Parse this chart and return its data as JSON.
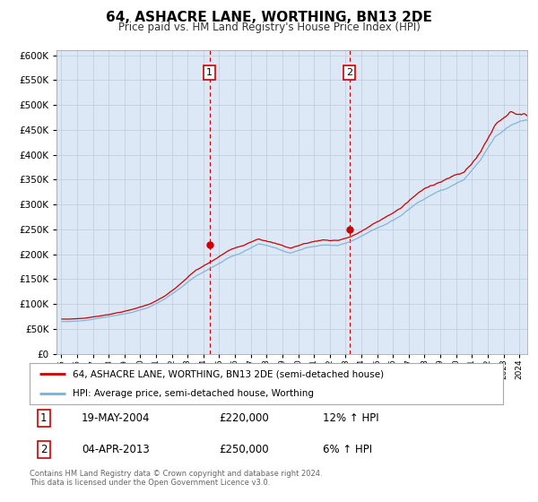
{
  "title": "64, ASHACRE LANE, WORTHING, BN13 2DE",
  "subtitle": "Price paid vs. HM Land Registry's House Price Index (HPI)",
  "legend_line1": "64, ASHACRE LANE, WORTHING, BN13 2DE (semi-detached house)",
  "legend_line2": "HPI: Average price, semi-detached house, Worthing",
  "annotation1_date": "19-MAY-2004",
  "annotation1_price": "£220,000",
  "annotation1_hpi": "12% ↑ HPI",
  "annotation2_date": "04-APR-2013",
  "annotation2_price": "£250,000",
  "annotation2_hpi": "6% ↑ HPI",
  "footnote": "Contains HM Land Registry data © Crown copyright and database right 2024.\nThis data is licensed under the Open Government Licence v3.0.",
  "line_color_red": "#cc0000",
  "line_color_blue": "#7bafd4",
  "dot_color_red": "#cc0000",
  "background_plot": "#dce8f5",
  "background_fig": "#ffffff",
  "ylim": [
    0,
    610000
  ],
  "yticks": [
    0,
    50000,
    100000,
    150000,
    200000,
    250000,
    300000,
    350000,
    400000,
    450000,
    500000,
    550000,
    600000
  ],
  "marker1_x": 2004.38,
  "marker1_y": 220000,
  "marker2_x": 2013.25,
  "marker2_y": 250000,
  "xlim_left": 1994.7,
  "xlim_right": 2024.5
}
